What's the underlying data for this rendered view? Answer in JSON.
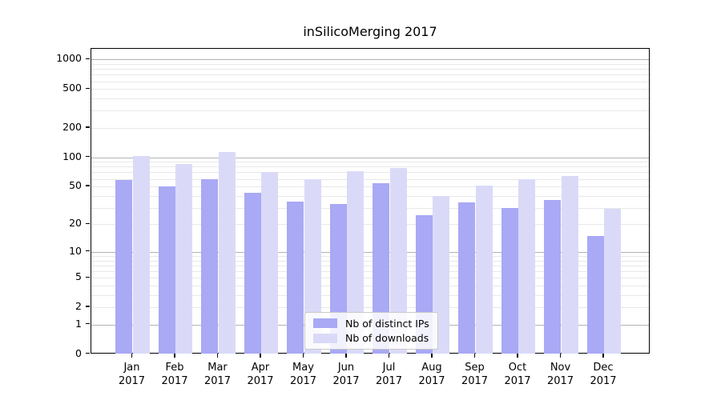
{
  "chart_data": {
    "type": "bar",
    "title": "inSilicoMerging 2017",
    "year_label": "2017",
    "categories": [
      "Jan",
      "Feb",
      "Mar",
      "Apr",
      "May",
      "Jun",
      "Jul",
      "Aug",
      "Sep",
      "Oct",
      "Nov",
      "Dec"
    ],
    "series": [
      {
        "name": "Nb of distinct IPs",
        "color": "#a9a9f5",
        "values": [
          58,
          50,
          59,
          43,
          35,
          33,
          54,
          25,
          34,
          30,
          36,
          15
        ]
      },
      {
        "name": "Nb of downloads",
        "color": "#dadaf8",
        "values": [
          104,
          86,
          113,
          70,
          59,
          72,
          77,
          40,
          51,
          60,
          64,
          29
        ]
      }
    ],
    "y_axis": {
      "scale": "log1p",
      "tick_values": [
        1000,
        500,
        200,
        100,
        50,
        20,
        10,
        5,
        2,
        1,
        0
      ],
      "tick_labels": [
        "1000",
        "500",
        "200",
        "100",
        "50",
        "20",
        "10",
        "5",
        "2",
        "1",
        "0"
      ],
      "range": [
        0,
        1285
      ],
      "grid_major_values": [
        1,
        10,
        100,
        1000
      ],
      "grid_minor_mantissas": [
        2,
        3,
        4,
        5,
        6,
        7,
        8,
        9
      ],
      "grid_minor_decades": [
        1,
        10,
        100
      ]
    },
    "legend": {
      "position": "lower center",
      "entries": [
        "Nb of distinct IPs",
        "Nb of downloads"
      ]
    },
    "colors": {
      "bar_distinct_ips": "#a9a9f5",
      "bar_downloads": "#dadaf8",
      "grid_major": "#b3b3b3",
      "grid_minor": "#e8e8e8",
      "axis": "#000000"
    }
  }
}
